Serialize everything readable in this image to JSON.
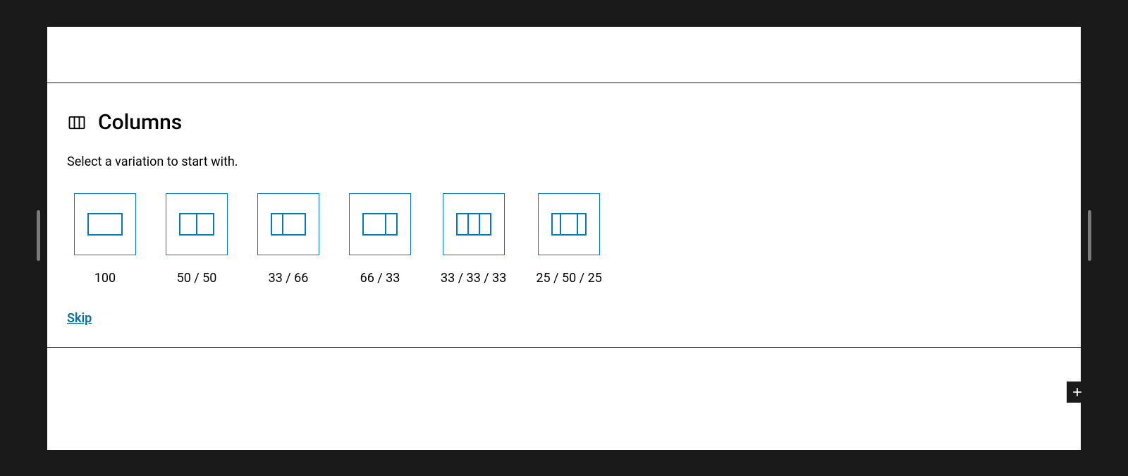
{
  "colors": {
    "background": "#1a1a1a",
    "panel_bg": "#ffffff",
    "accent": "#007cba",
    "link": "#0073aa",
    "text": "#000000",
    "handle": "#7a7a7a"
  },
  "block": {
    "title": "Columns",
    "instructions": "Select a variation to start with.",
    "skip_label": "Skip"
  },
  "variations": [
    {
      "label": "100",
      "segments": [
        1
      ]
    },
    {
      "label": "50 / 50",
      "segments": [
        1,
        1
      ]
    },
    {
      "label": "33 / 66",
      "segments": [
        1,
        2
      ]
    },
    {
      "label": "66 / 33",
      "segments": [
        2,
        1
      ]
    },
    {
      "label": "33 / 33 / 33",
      "segments": [
        1,
        1,
        1
      ]
    },
    {
      "label": "25 / 50 / 25",
      "segments": [
        1,
        2,
        1
      ]
    }
  ],
  "icon_style": {
    "stroke": "#007cba",
    "stroke_width": 2,
    "inner_width": 48,
    "inner_height": 30,
    "box_size": 88
  }
}
